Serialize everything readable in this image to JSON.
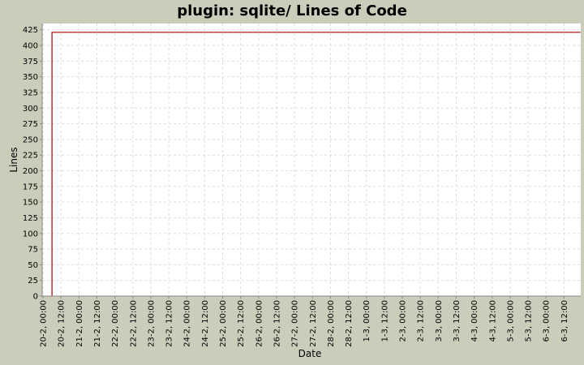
{
  "chart_data": {
    "type": "line",
    "title": "plugin: sqlite/ Lines of Code",
    "xlabel": "Date",
    "ylabel": "Lines",
    "ylim": [
      0,
      435
    ],
    "yticks": [
      0,
      25,
      50,
      75,
      100,
      125,
      150,
      175,
      200,
      225,
      250,
      275,
      300,
      325,
      350,
      375,
      400,
      425
    ],
    "xticks": [
      "20-2, 00:00",
      "20-2, 12:00",
      "21-2, 00:00",
      "21-2, 12:00",
      "22-2, 00:00",
      "22-2, 12:00",
      "23-2, 00:00",
      "23-2, 12:00",
      "24-2, 00:00",
      "24-2, 12:00",
      "25-2, 00:00",
      "25-2, 12:00",
      "26-2, 00:00",
      "26-2, 12:00",
      "27-2, 00:00",
      "27-2, 12:00",
      "28-2, 00:00",
      "28-2, 12:00",
      "1-3, 00:00",
      "1-3, 12:00",
      "2-3, 00:00",
      "2-3, 12:00",
      "3-3, 00:00",
      "3-3, 12:00",
      "4-3, 00:00",
      "4-3, 12:00",
      "5-3, 00:00",
      "5-3, 12:00",
      "6-3, 00:00",
      "6-3, 12:00"
    ],
    "grid": true,
    "colors": {
      "line": "#aa0000",
      "plot_bg": "#ffffff",
      "grid": "#dddddd",
      "page_bg": "#ccccbb"
    },
    "series": [
      {
        "x": [
          "20-2, 06:00",
          "20-2, 06:00",
          "6-3, 23:00"
        ],
        "y": [
          0,
          421,
          421
        ]
      }
    ]
  }
}
